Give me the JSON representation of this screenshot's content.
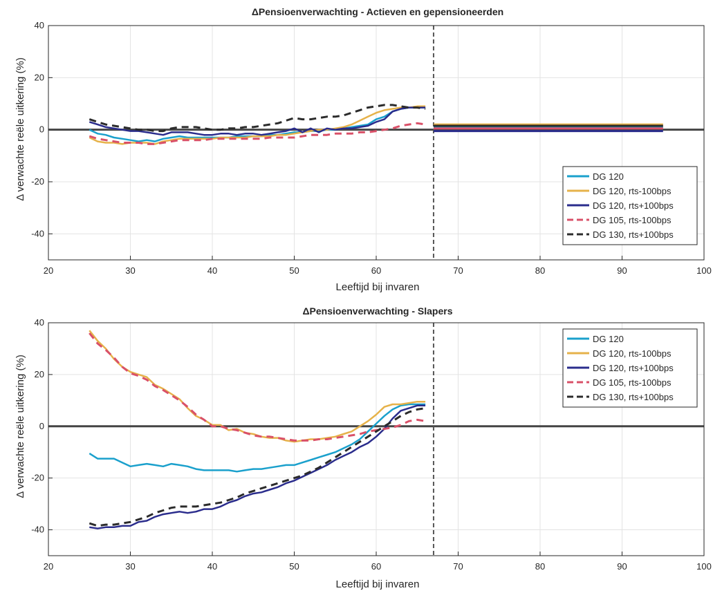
{
  "colors": {
    "dg120": "#1aa0cc",
    "dg120_down": "#e6b24a",
    "dg120_up": "#2a2c8c",
    "dg105_down": "#d95068",
    "dg130_up": "#2b2b2b",
    "zero_line": "#444444",
    "retire_line": "#555555"
  },
  "chart_data": [
    {
      "type": "line",
      "title": "ΔPensioenverwachting - Actieven en gepensioneerden",
      "xlabel": "Leeftijd bij invaren",
      "ylabel": "Δ verwachte reële uitkering (%)",
      "xlim": [
        20,
        100
      ],
      "ylim": [
        -50,
        40
      ],
      "xticks": [
        "20",
        "30",
        "40",
        "50",
        "60",
        "70",
        "80",
        "90",
        "100"
      ],
      "yticks": [
        "40",
        "20",
        "0",
        "-20",
        "-40"
      ],
      "grid": true,
      "legend_position": "bottom-right",
      "reference_lines": {
        "horizontal_y": 0,
        "vertical_x": 67
      },
      "series": [
        {
          "name": "DG 120",
          "color_key": "dg120",
          "dash": false,
          "x": [
            25,
            26,
            27,
            28,
            29,
            30,
            31,
            32,
            33,
            34,
            35,
            36,
            37,
            38,
            39,
            40,
            41,
            42,
            43,
            44,
            45,
            46,
            47,
            48,
            49,
            50,
            51,
            52,
            53,
            54,
            55,
            56,
            57,
            58,
            59,
            60,
            61,
            62,
            63,
            64,
            65,
            66
          ],
          "y": [
            0,
            -1.5,
            -2,
            -3,
            -3.5,
            -4,
            -4.5,
            -4,
            -4.5,
            -3.5,
            -3,
            -2.5,
            -3,
            -3,
            -3,
            -3,
            -3,
            -3,
            -2.5,
            -2.5,
            -2.5,
            -2.5,
            -2,
            -2,
            -1.5,
            -1,
            -1,
            -0.5,
            -0.5,
            0,
            0,
            0.5,
            1,
            1.5,
            2,
            4,
            5,
            7,
            8,
            8.5,
            8.5,
            8.5
          ],
          "x2": [
            67,
            95
          ],
          "y2": [
            1,
            1
          ]
        },
        {
          "name": "DG 120, rts-100bps",
          "color_key": "dg120_down",
          "dash": false,
          "x": [
            25,
            26,
            27,
            28,
            29,
            30,
            31,
            32,
            33,
            34,
            35,
            36,
            37,
            38,
            39,
            40,
            41,
            42,
            43,
            44,
            45,
            46,
            47,
            48,
            49,
            50,
            51,
            52,
            53,
            54,
            55,
            56,
            57,
            58,
            59,
            60,
            61,
            62,
            63,
            64,
            65,
            66
          ],
          "y": [
            -3,
            -4.5,
            -5,
            -5,
            -5.5,
            -5,
            -5,
            -5,
            -5.5,
            -4.5,
            -4,
            -3.5,
            -3.5,
            -3.5,
            -3.5,
            -3.5,
            -3,
            -3,
            -3,
            -3,
            -2.5,
            -2.5,
            -2.5,
            -2,
            -2,
            -1.5,
            -1,
            -0.5,
            0,
            0,
            0.5,
            1,
            2,
            3.5,
            5,
            6.5,
            7.5,
            8,
            8.5,
            8.5,
            9,
            9
          ],
          "x2": [
            67,
            95
          ],
          "y2": [
            2,
            2
          ]
        },
        {
          "name": "DG 120, rts+100bps",
          "color_key": "dg120_up",
          "dash": false,
          "x": [
            25,
            26,
            27,
            28,
            29,
            30,
            31,
            32,
            33,
            34,
            35,
            36,
            37,
            38,
            39,
            40,
            41,
            42,
            43,
            44,
            45,
            46,
            47,
            48,
            49,
            50,
            51,
            52,
            53,
            54,
            55,
            56,
            57,
            58,
            59,
            60,
            61,
            62,
            63,
            64,
            65,
            66
          ],
          "y": [
            3,
            2,
            1,
            0.5,
            0,
            -0.5,
            -0.5,
            -1,
            -1.5,
            -2,
            -1,
            -1,
            -1,
            -1.5,
            -2,
            -2,
            -1.5,
            -1.5,
            -2,
            -1.5,
            -1.5,
            -2,
            -1.5,
            -1,
            -0.5,
            0.5,
            -1,
            0.5,
            -1,
            0.5,
            0,
            0.5,
            0.5,
            1,
            1.5,
            3,
            4,
            7,
            8,
            8.5,
            8.5,
            8.5
          ],
          "x2": [
            67,
            95
          ],
          "y2": [
            -0.5,
            -0.5
          ]
        },
        {
          "name": "DG 105, rts-100bps",
          "color_key": "dg105_down",
          "dash": true,
          "x": [
            25,
            26,
            27,
            28,
            29,
            30,
            31,
            32,
            33,
            34,
            35,
            36,
            37,
            38,
            39,
            40,
            41,
            42,
            43,
            44,
            45,
            46,
            47,
            48,
            49,
            50,
            51,
            52,
            53,
            54,
            55,
            56,
            57,
            58,
            59,
            60,
            61,
            62,
            63,
            64,
            65,
            66
          ],
          "y": [
            -2.5,
            -3.5,
            -4,
            -4.5,
            -5,
            -5,
            -5,
            -5.5,
            -5.5,
            -5,
            -4.5,
            -4,
            -4,
            -4,
            -4,
            -3.5,
            -3.5,
            -3.5,
            -3.5,
            -3.5,
            -3.5,
            -3.5,
            -3,
            -3,
            -3,
            -3,
            -2.5,
            -2,
            -2,
            -2,
            -1.5,
            -1.5,
            -1.5,
            -1,
            -1,
            -0.5,
            0,
            0.5,
            1.5,
            2,
            2.5,
            2
          ],
          "x2": [
            67,
            95
          ],
          "y2": [
            0.5,
            0.5
          ]
        },
        {
          "name": "DG 130, rts+100bps",
          "color_key": "dg130_up",
          "dash": true,
          "x": [
            25,
            26,
            27,
            28,
            29,
            30,
            31,
            32,
            33,
            34,
            35,
            36,
            37,
            38,
            39,
            40,
            41,
            42,
            43,
            44,
            45,
            46,
            47,
            48,
            49,
            50,
            51,
            52,
            53,
            54,
            55,
            56,
            57,
            58,
            59,
            60,
            61,
            62,
            63,
            64,
            65,
            66
          ],
          "y": [
            4,
            3,
            2,
            1.5,
            1,
            0.5,
            0,
            0,
            -0.5,
            -0.5,
            0.5,
            1,
            1,
            1,
            0.5,
            0,
            0,
            0.5,
            0.5,
            1,
            1,
            1.5,
            2,
            2.5,
            3.5,
            4.5,
            4,
            4,
            4.5,
            5,
            5,
            5.5,
            6.5,
            7.5,
            8.5,
            9,
            9.5,
            9.5,
            9,
            8.5,
            8.5,
            8
          ],
          "x2": [
            67,
            95
          ],
          "y2": [
            1.5,
            1.5
          ]
        }
      ]
    },
    {
      "type": "line",
      "title": "ΔPensioenverwachting - Slapers",
      "xlabel": "Leeftijd bij invaren",
      "ylabel": "Δ verwachte reële uitkering (%)",
      "xlim": [
        20,
        100
      ],
      "ylim": [
        -50,
        40
      ],
      "xticks": [
        "20",
        "30",
        "40",
        "50",
        "60",
        "70",
        "80",
        "90",
        "100"
      ],
      "yticks": [
        "40",
        "20",
        "0",
        "-20",
        "-40"
      ],
      "grid": true,
      "legend_position": "top-right",
      "reference_lines": {
        "horizontal_y": 0,
        "vertical_x": 67
      },
      "series": [
        {
          "name": "DG 120",
          "color_key": "dg120",
          "dash": false,
          "x": [
            25,
            26,
            27,
            28,
            29,
            30,
            31,
            32,
            33,
            34,
            35,
            36,
            37,
            38,
            39,
            40,
            41,
            42,
            43,
            44,
            45,
            46,
            47,
            48,
            49,
            50,
            51,
            52,
            53,
            54,
            55,
            56,
            57,
            58,
            59,
            60,
            61,
            62,
            63,
            64,
            65,
            66
          ],
          "y": [
            -10.5,
            -12.5,
            -12.5,
            -12.5,
            -14,
            -15.5,
            -15,
            -14.5,
            -15,
            -15.5,
            -14.5,
            -15,
            -15.5,
            -16.5,
            -17,
            -17,
            -17,
            -17,
            -17.5,
            -17,
            -16.5,
            -16.5,
            -16,
            -15.5,
            -15,
            -15,
            -14,
            -13,
            -12,
            -11,
            -10,
            -8.5,
            -7,
            -5,
            -2,
            1,
            4,
            6.5,
            8,
            8.5,
            8.5,
            8.5
          ]
        },
        {
          "name": "DG 120, rts-100bps",
          "color_key": "dg120_down",
          "dash": false,
          "x": [
            25,
            26,
            27,
            28,
            29,
            30,
            31,
            32,
            33,
            34,
            35,
            36,
            37,
            38,
            39,
            40,
            41,
            42,
            43,
            44,
            45,
            46,
            47,
            48,
            49,
            50,
            51,
            52,
            53,
            54,
            55,
            56,
            57,
            58,
            59,
            60,
            61,
            62,
            63,
            64,
            65,
            66
          ],
          "y": [
            37,
            33,
            30,
            26,
            23,
            21,
            20,
            19,
            16,
            14.5,
            12.5,
            10.5,
            7,
            4,
            2.5,
            0.5,
            0.5,
            -1.5,
            -1,
            -2.5,
            -3,
            -4,
            -4.5,
            -4.5,
            -5.5,
            -6,
            -5.5,
            -5,
            -5,
            -4.5,
            -4,
            -3,
            -2,
            0,
            2,
            4.5,
            7.5,
            8.5,
            8.5,
            9,
            9.5,
            9.5
          ]
        },
        {
          "name": "DG 120, rts+100bps",
          "color_key": "dg120_up",
          "dash": false,
          "x": [
            25,
            26,
            27,
            28,
            29,
            30,
            31,
            32,
            33,
            34,
            35,
            36,
            37,
            38,
            39,
            40,
            41,
            42,
            43,
            44,
            45,
            46,
            47,
            48,
            49,
            50,
            51,
            52,
            53,
            54,
            55,
            56,
            57,
            58,
            59,
            60,
            61,
            62,
            63,
            64,
            65,
            66
          ],
          "y": [
            -39,
            -39.5,
            -39,
            -39,
            -38.5,
            -38.5,
            -37,
            -36.5,
            -35,
            -34,
            -33.5,
            -33,
            -33.5,
            -33,
            -32,
            -32,
            -31,
            -29.5,
            -28.5,
            -27,
            -26,
            -25.5,
            -24.5,
            -23.5,
            -22,
            -21,
            -19.5,
            -18,
            -16.5,
            -15,
            -13,
            -11.5,
            -10,
            -8,
            -6.5,
            -4,
            -1,
            3,
            6,
            7,
            8,
            8
          ]
        },
        {
          "name": "DG 105, rts-100bps",
          "color_key": "dg105_down",
          "dash": true,
          "x": [
            25,
            26,
            27,
            28,
            29,
            30,
            31,
            32,
            33,
            34,
            35,
            36,
            37,
            38,
            39,
            40,
            41,
            42,
            43,
            44,
            45,
            46,
            47,
            48,
            49,
            50,
            51,
            52,
            53,
            54,
            55,
            56,
            57,
            58,
            59,
            60,
            61,
            62,
            63,
            64,
            65,
            66
          ],
          "y": [
            36,
            32,
            29.5,
            26.5,
            23,
            20.5,
            19.5,
            18,
            15.5,
            14,
            12,
            10,
            7.5,
            4.5,
            2.5,
            0,
            0,
            -1,
            -1.5,
            -2.5,
            -3.5,
            -4,
            -4,
            -4.5,
            -5,
            -5.5,
            -5.5,
            -5.5,
            -5,
            -5,
            -4.5,
            -4,
            -3.5,
            -3,
            -2,
            -1.5,
            -1,
            -0.5,
            0.5,
            2,
            2.5,
            2
          ]
        },
        {
          "name": "DG 130, rts+100bps",
          "color_key": "dg130_up",
          "dash": true,
          "x": [
            25,
            26,
            27,
            28,
            29,
            30,
            31,
            32,
            33,
            34,
            35,
            36,
            37,
            38,
            39,
            40,
            41,
            42,
            43,
            44,
            45,
            46,
            47,
            48,
            49,
            50,
            51,
            52,
            53,
            54,
            55,
            56,
            57,
            58,
            59,
            60,
            61,
            62,
            63,
            64,
            65,
            66
          ],
          "y": [
            -37.5,
            -38.5,
            -38,
            -38,
            -37.5,
            -37,
            -36,
            -35,
            -33.5,
            -32.5,
            -31.5,
            -31,
            -31,
            -31,
            -30.5,
            -30,
            -29.5,
            -28.5,
            -27.5,
            -26,
            -25,
            -24,
            -23,
            -22,
            -21,
            -20,
            -19,
            -17.5,
            -16,
            -14,
            -12,
            -10,
            -8,
            -6,
            -4,
            -2,
            0,
            2,
            4,
            5.5,
            6.5,
            7
          ]
        }
      ]
    }
  ]
}
